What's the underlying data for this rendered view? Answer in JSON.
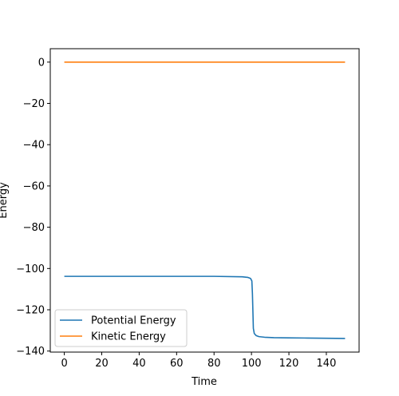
{
  "chart_data": {
    "type": "line",
    "title": "",
    "xlabel": "Time",
    "ylabel": "Energy",
    "xlim": [
      -7.5,
      157.5
    ],
    "ylim": [
      -140.5,
      6.5
    ],
    "xticks": [
      0,
      20,
      40,
      60,
      80,
      100,
      120,
      140
    ],
    "yticks": [
      0,
      -20,
      -40,
      -60,
      -80,
      -100,
      -120,
      -140
    ],
    "grid": false,
    "legend_position": "lower-left",
    "series": [
      {
        "name": "Potential Energy",
        "color": "#1f77b4",
        "x": [
          0,
          20,
          40,
          60,
          80,
          95,
          98,
          99.5,
          100.2,
          100.5,
          100.8,
          101,
          101.5,
          102.5,
          104,
          107,
          112,
          120,
          130,
          140,
          150
        ],
        "y": [
          -103.8,
          -103.8,
          -103.8,
          -103.8,
          -103.8,
          -104.0,
          -104.3,
          -104.8,
          -106,
          -112,
          -122,
          -129,
          -131.5,
          -132.5,
          -133.0,
          -133.3,
          -133.5,
          -133.6,
          -133.7,
          -133.8,
          -133.9
        ]
      },
      {
        "name": "Kinetic Energy",
        "color": "#ff7f0e",
        "x": [
          0,
          150
        ],
        "y": [
          0,
          0
        ]
      }
    ]
  }
}
